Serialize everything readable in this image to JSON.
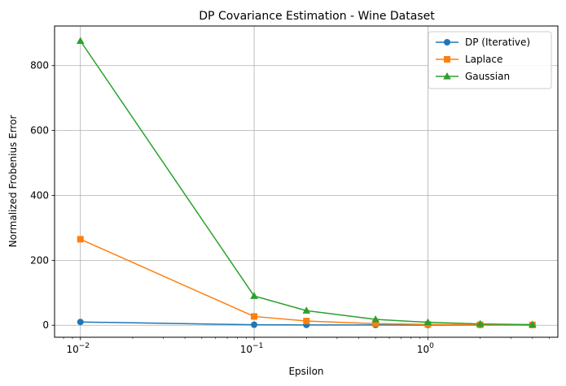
{
  "chart_data": {
    "type": "line",
    "title": "DP Covariance Estimation - Wine Dataset",
    "xlabel": "Epsilon",
    "ylabel": "Normalized Frobenius Error",
    "xscale": "log",
    "xlim": [
      0.0071,
      5.6
    ],
    "ylim": [
      -37,
      922
    ],
    "xticks": [
      {
        "value": 0.01,
        "base": "10",
        "exp": "−2"
      },
      {
        "value": 0.1,
        "base": "10",
        "exp": "−1"
      },
      {
        "value": 1,
        "base": "10",
        "exp": "0"
      }
    ],
    "yticks": [
      0,
      200,
      400,
      600,
      800
    ],
    "grid": true,
    "legend_position": "upper right",
    "x": [
      0.01,
      0.1,
      0.2,
      0.5,
      1.0,
      2.0,
      4.0
    ],
    "series": [
      {
        "name": "DP (Iterative)",
        "color": "#1f77b4",
        "marker": "circle",
        "values": [
          10,
          1.5,
          1,
          0.8,
          0.6,
          0.5,
          0.4
        ]
      },
      {
        "name": "Laplace",
        "color": "#ff7f0e",
        "marker": "square",
        "values": [
          265,
          27,
          13,
          5,
          2.5,
          1.5,
          1
        ]
      },
      {
        "name": "Gaussian",
        "color": "#2ca02c",
        "marker": "triangle",
        "values": [
          876,
          90,
          45,
          18,
          9,
          4,
          2
        ]
      }
    ]
  }
}
